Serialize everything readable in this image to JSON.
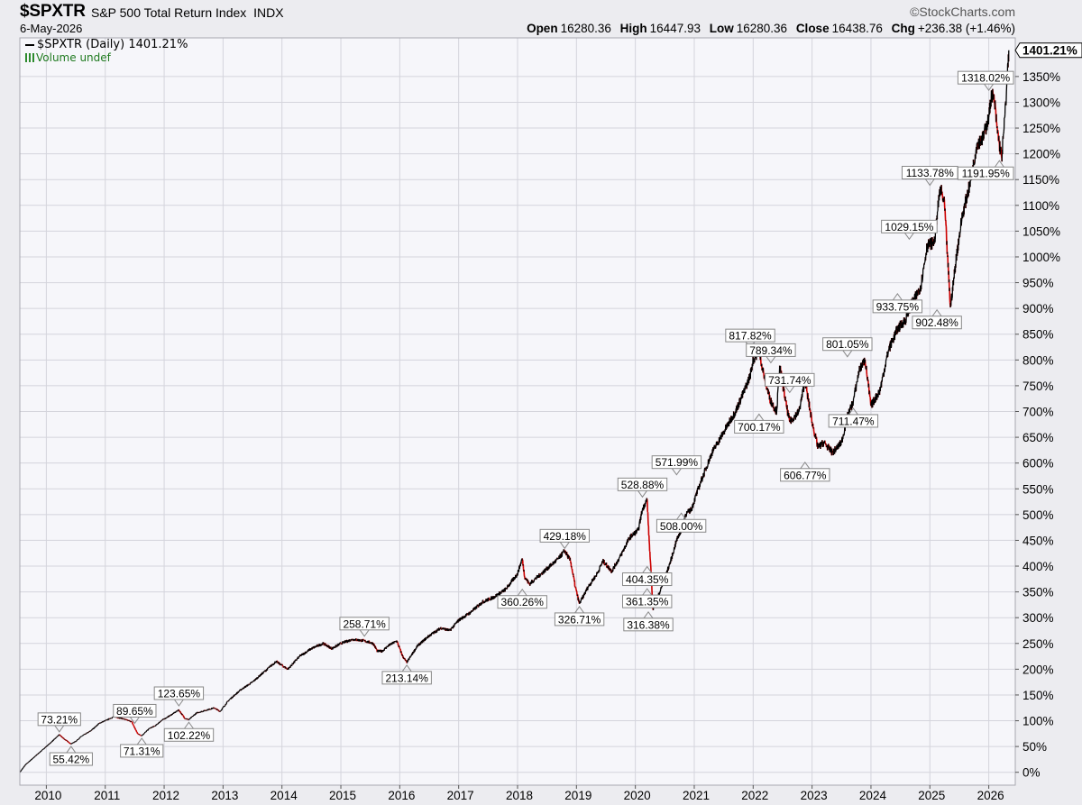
{
  "header": {
    "symbol": "$SPXTR",
    "name": "S&P 500 Total Return Index",
    "exchange": "INDX",
    "date": "6-May-2026",
    "brand": "©StockCharts.com",
    "open_label": "Open",
    "open": "16280.36",
    "high_label": "High",
    "high": "16447.93",
    "low_label": "Low",
    "low": "16280.36",
    "close_label": "Close",
    "close": "16438.76",
    "chg_label": "Chg",
    "chg": "+236.38 (+1.46%)"
  },
  "legend": {
    "series": "$SPXTR (Daily) 1401.21%",
    "volume": "Volume undef"
  },
  "colors": {
    "background": "#f6f6fa",
    "up": "#000000",
    "down": "#cc0000",
    "grid": "#d4d4dc",
    "frame": "#a8a8b0"
  },
  "chart_data": {
    "type": "line",
    "ylim": [
      -25,
      1425
    ],
    "xlim": [
      2009.55,
      2026.45
    ],
    "y_ticks": [
      0,
      50,
      100,
      150,
      200,
      250,
      300,
      350,
      400,
      450,
      500,
      550,
      600,
      650,
      700,
      750,
      800,
      850,
      900,
      950,
      1000,
      1050,
      1100,
      1150,
      1200,
      1250,
      1300,
      1350
    ],
    "y_tick_labels": [
      "0%",
      "50%",
      "100%",
      "150%",
      "200%",
      "250%",
      "300%",
      "350%",
      "400%",
      "450%",
      "500%",
      "550%",
      "600%",
      "650%",
      "700%",
      "750%",
      "800%",
      "850%",
      "900%",
      "950%",
      "1000%",
      "1050%",
      "1100%",
      "1150%",
      "1200%",
      "1250%",
      "1300%",
      "1350%"
    ],
    "x_ticks": [
      2010,
      2011,
      2012,
      2013,
      2014,
      2015,
      2016,
      2017,
      2018,
      2019,
      2020,
      2021,
      2022,
      2023,
      2024,
      2025,
      2026
    ],
    "x_tick_labels": [
      "2010",
      "2011",
      "2012",
      "2013",
      "2014",
      "2015",
      "2016",
      "2017",
      "2018",
      "2019",
      "2020",
      "2021",
      "2022",
      "2023",
      "2024",
      "2025",
      "2026"
    ],
    "last_value_label": "1401.21%",
    "grid": true,
    "series": [
      {
        "x": [
          2009.55,
          2009.65,
          2009.8,
          2009.95,
          2010.1,
          2010.22,
          2010.3,
          2010.42,
          2010.5,
          2010.6,
          2010.75,
          2010.9,
          2011.0,
          2011.15,
          2011.3,
          2011.45,
          2011.55,
          2011.62,
          2011.75,
          2011.85,
          2011.95,
          2012.1,
          2012.25,
          2012.35,
          2012.42,
          2012.55,
          2012.7,
          2012.85,
          2012.95,
          2013.1,
          2013.3,
          2013.5,
          2013.7,
          2013.9,
          2014.1,
          2014.3,
          2014.5,
          2014.7,
          2014.85,
          2015.0,
          2015.2,
          2015.4,
          2015.55,
          2015.62,
          2015.7,
          2015.8,
          2015.95,
          2016.05,
          2016.12,
          2016.3,
          2016.5,
          2016.7,
          2016.85,
          2017.0,
          2017.2,
          2017.4,
          2017.6,
          2017.8,
          2018.0,
          2018.08,
          2018.12,
          2018.2,
          2018.3,
          2018.5,
          2018.7,
          2018.8,
          2018.9,
          2018.98,
          2019.05,
          2019.2,
          2019.35,
          2019.45,
          2019.6,
          2019.75,
          2019.9,
          2020.05,
          2020.12,
          2020.2,
          2020.22,
          2020.3,
          2020.45,
          2020.6,
          2020.7,
          2020.78,
          2020.85,
          2020.95,
          2021.1,
          2021.3,
          2021.5,
          2021.7,
          2021.85,
          2021.95,
          2022.0,
          2022.1,
          2022.2,
          2022.3,
          2022.4,
          2022.45,
          2022.55,
          2022.62,
          2022.7,
          2022.78,
          2022.88,
          2023.0,
          2023.1,
          2023.2,
          2023.35,
          2023.5,
          2023.6,
          2023.7,
          2023.8,
          2023.9,
          2024.0,
          2024.15,
          2024.3,
          2024.45,
          2024.6,
          2024.65,
          2024.75,
          2024.85,
          2024.95,
          2025.0,
          2025.08,
          2025.12,
          2025.18,
          2025.25,
          2025.3,
          2025.35,
          2025.45,
          2025.55,
          2025.7,
          2025.8,
          2025.9,
          2026.0,
          2026.05,
          2026.1,
          2026.14,
          2026.18,
          2026.22,
          2026.26,
          2026.3,
          2026.34
        ],
        "values": [
          0,
          15,
          30,
          45,
          60,
          73,
          65,
          55,
          60,
          70,
          80,
          95,
          100,
          108,
          104,
          98,
          75,
          71,
          85,
          90,
          100,
          110,
          121,
          105,
          102,
          115,
          120,
          125,
          118,
          140,
          160,
          175,
          195,
          215,
          200,
          225,
          240,
          250,
          240,
          250,
          258,
          255,
          250,
          235,
          235,
          245,
          255,
          225,
          213,
          245,
          265,
          280,
          275,
          295,
          310,
          330,
          340,
          355,
          385,
          415,
          380,
          365,
          375,
          395,
          415,
          430,
          410,
          360,
          327,
          360,
          385,
          410,
          390,
          420,
          455,
          470,
          510,
          530,
          480,
          316,
          360,
          410,
          450,
          470,
          500,
          510,
          560,
          620,
          660,
          700,
          740,
          770,
          800,
          818,
          760,
          720,
          700,
          789,
          720,
          680,
          690,
          700,
          760,
          680,
          630,
          640,
          620,
          640,
          690,
          720,
          780,
          801,
          711,
          740,
          820,
          860,
          880,
          900,
          920,
          945,
          1020,
          1025,
          1029,
          1080,
          1134,
          1100,
          1000,
          902,
          1000,
          1080,
          1150,
          1220,
          1230,
          1270,
          1318,
          1300,
          1250,
          1220,
          1192,
          1250,
          1320,
          1401
        ]
      }
    ],
    "annotations": [
      {
        "x": 2010.22,
        "y": 73.21,
        "label": "73.21%",
        "pos": "above"
      },
      {
        "x": 2010.42,
        "y": 55.42,
        "label": "55.42%",
        "pos": "below"
      },
      {
        "x": 2011.5,
        "y": 89.65,
        "label": "89.65%",
        "pos": "above"
      },
      {
        "x": 2011.62,
        "y": 71.31,
        "label": "71.31%",
        "pos": "below"
      },
      {
        "x": 2012.25,
        "y": 123.65,
        "label": "123.65%",
        "pos": "above"
      },
      {
        "x": 2012.42,
        "y": 102.22,
        "label": "102.22%",
        "pos": "below"
      },
      {
        "x": 2015.4,
        "y": 258.71,
        "label": "258.71%",
        "pos": "above"
      },
      {
        "x": 2016.12,
        "y": 213.14,
        "label": "213.14%",
        "pos": "below"
      },
      {
        "x": 2018.08,
        "y": 360.26,
        "label": "360.26%",
        "pos": "below"
      },
      {
        "x": 2018.8,
        "y": 429.18,
        "label": "429.18%",
        "pos": "above"
      },
      {
        "x": 2019.05,
        "y": 326.71,
        "label": "326.71%",
        "pos": "below"
      },
      {
        "x": 2020.12,
        "y": 528.88,
        "label": "528.88%",
        "pos": "above"
      },
      {
        "x": 2020.2,
        "y": 404.35,
        "label": "404.35%",
        "pos": "below"
      },
      {
        "x": 2020.2,
        "y": 361.35,
        "label": "361.35%",
        "pos": "below"
      },
      {
        "x": 2020.22,
        "y": 316.38,
        "label": "316.38%",
        "pos": "below"
      },
      {
        "x": 2020.7,
        "y": 571.99,
        "label": "571.99%",
        "pos": "above"
      },
      {
        "x": 2020.78,
        "y": 508.0,
        "label": "508.00%",
        "pos": "below"
      },
      {
        "x": 2021.95,
        "y": 817.82,
        "label": "817.82%",
        "pos": "above"
      },
      {
        "x": 2022.3,
        "y": 789.34,
        "label": "789.34%",
        "pos": "above"
      },
      {
        "x": 2022.62,
        "y": 731.74,
        "label": "731.74%",
        "pos": "above"
      },
      {
        "x": 2022.1,
        "y": 700.17,
        "label": "700.17%",
        "pos": "below"
      },
      {
        "x": 2022.88,
        "y": 606.77,
        "label": "606.77%",
        "pos": "below"
      },
      {
        "x": 2023.6,
        "y": 801.05,
        "label": "801.05%",
        "pos": "above"
      },
      {
        "x": 2023.7,
        "y": 711.47,
        "label": "711.47%",
        "pos": "below"
      },
      {
        "x": 2024.45,
        "y": 933.75,
        "label": "933.75%",
        "pos": "below"
      },
      {
        "x": 2024.65,
        "y": 1029.15,
        "label": "1029.15%",
        "pos": "above"
      },
      {
        "x": 2025.0,
        "y": 1133.78,
        "label": "1133.78%",
        "pos": "above"
      },
      {
        "x": 2025.12,
        "y": 902.48,
        "label": "902.48%",
        "pos": "below"
      },
      {
        "x": 2026.0,
        "y": 1318.02,
        "label": "1318.02%",
        "pos": "above"
      },
      {
        "x": 2026.18,
        "y": 1191.95,
        "label": "1191.95%",
        "pos": "below"
      }
    ]
  }
}
